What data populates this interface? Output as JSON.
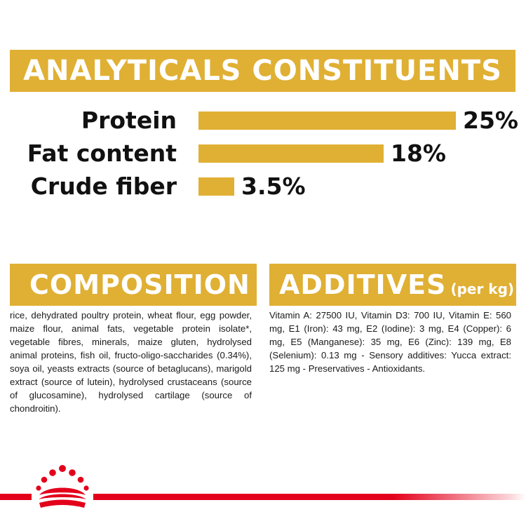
{
  "analytics": {
    "title": "ANALYTICALS CONSTITUENTS",
    "rows": [
      {
        "label": "Protein",
        "value": "25%",
        "level": 25
      },
      {
        "label": "Fat content",
        "value": "18%",
        "level": 18
      },
      {
        "label": "Crude fiber",
        "value": "3.5%",
        "level": 3.5
      }
    ]
  },
  "composition": {
    "title": "COMPOSITION",
    "text": "rice, dehydrated poultry protein, wheat flour, egg powder, maize flour, animal fats, vegetable protein isolate*, vegetable fibres, minerals, maize gluten, hydrolysed animal proteins, fish oil, fructo-oligo-saccharides (0.34%), soya oil, yeasts extracts (source of betaglucans), marigold extract (source of lutein), hydrolysed crustaceans (source of glucosamine), hydrolysed cartilage (source of chondroitin)."
  },
  "additives": {
    "title": "ADDITIVES",
    "subtitle": "(per kg)",
    "text": "Vitamin A: 27500 IU, Vitamin D3: 700 IU, Vitamin E: 560 mg, E1 (Iron): 43 mg, E2 (Iodine): 3 mg, E4 (Copper): 6 mg, E5 (Manganese): 35 mg, E6 (Zinc): 139 mg, E8 (Selenium): 0.13 mg - Sensory additives: Yucca extract: 125 mg - Preservatives - Antioxidants."
  },
  "colors": {
    "accent": "#e0b034",
    "brand_red": "#e3001b"
  },
  "icons": {
    "brand_logo": "crown-icon"
  }
}
